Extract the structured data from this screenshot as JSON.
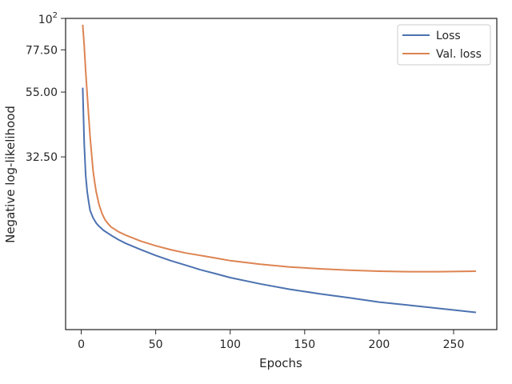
{
  "chart_data": {
    "type": "line",
    "title": "",
    "xlabel": "Epochs",
    "ylabel": "Negative log-likelihood",
    "xlim": [
      -10.5,
      279
    ],
    "ylim": [
      8.0,
      100.0
    ],
    "yscale": "log",
    "grid": false,
    "legend_position": "top-right",
    "x_ticks": [
      0,
      50,
      100,
      150,
      200,
      250
    ],
    "x_tick_labels": [
      "0",
      "50",
      "100",
      "150",
      "200",
      "250"
    ],
    "y_ticks": [
      32.5,
      55.0,
      77.5
    ],
    "y_tick_labels": [
      "32.50",
      "55.00",
      "77.50"
    ],
    "y_top_label": {
      "base": "10",
      "exp": "2"
    },
    "series": [
      {
        "name": "Loss",
        "color": "#4c72b0",
        "x": [
          1,
          2,
          3,
          4,
          5,
          6,
          8,
          10,
          12,
          15,
          20,
          25,
          30,
          40,
          50,
          60,
          70,
          80,
          90,
          100,
          120,
          140,
          160,
          180,
          200,
          220,
          240,
          265
        ],
        "y": [
          57.0,
          36.0,
          28.0,
          24.5,
          22.5,
          21.0,
          19.8,
          19.0,
          18.5,
          17.9,
          17.2,
          16.6,
          16.1,
          15.3,
          14.6,
          14.0,
          13.5,
          13.0,
          12.6,
          12.2,
          11.6,
          11.1,
          10.7,
          10.35,
          10.0,
          9.75,
          9.5,
          9.2
        ]
      },
      {
        "name": "Val. loss",
        "color": "#dd8452",
        "x": [
          1,
          2,
          3,
          4,
          5,
          6,
          7,
          8,
          9,
          10,
          12,
          14,
          16,
          18,
          20,
          25,
          30,
          40,
          50,
          60,
          70,
          80,
          90,
          100,
          120,
          140,
          160,
          180,
          200,
          220,
          240,
          265
        ],
        "y": [
          95.0,
          80.0,
          65.0,
          54.0,
          45.0,
          38.0,
          33.0,
          29.0,
          26.5,
          24.5,
          22.0,
          20.5,
          19.5,
          18.9,
          18.4,
          17.7,
          17.2,
          16.4,
          15.8,
          15.3,
          14.9,
          14.6,
          14.3,
          14.0,
          13.6,
          13.3,
          13.1,
          12.95,
          12.85,
          12.8,
          12.8,
          12.85
        ]
      }
    ]
  }
}
